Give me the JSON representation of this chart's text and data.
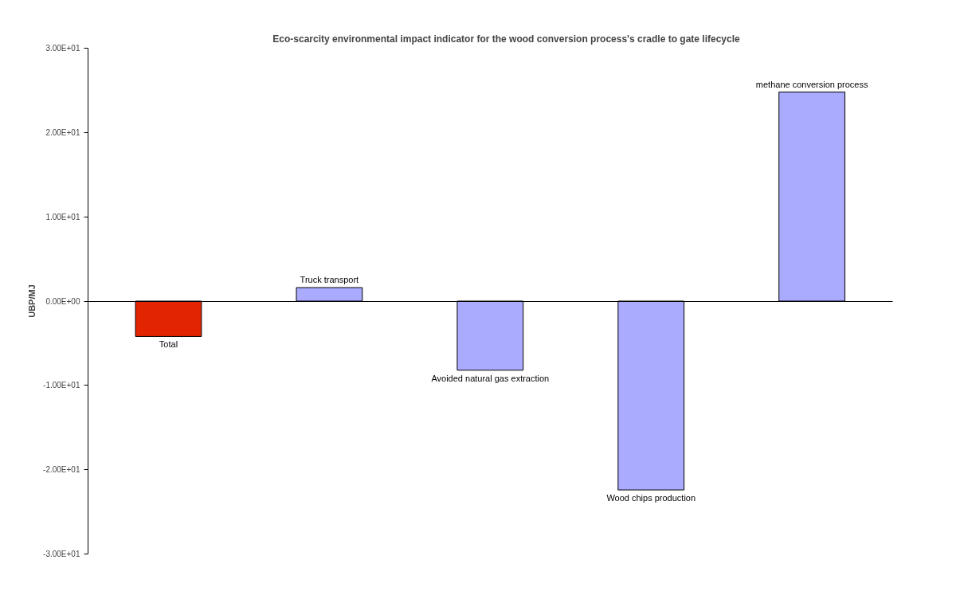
{
  "chart_data": {
    "type": "bar",
    "title": "Eco-scarcity environmental impact indicator for the wood conversion process's cradle to gate lifecycle",
    "ylabel": "UBP/MJ",
    "categories": [
      "Total",
      "Truck transport",
      "Avoided natural gas extraction",
      "Wood chips production",
      "methane conversion process"
    ],
    "values": [
      -4.2,
      1.6,
      -8.2,
      -22.4,
      24.8
    ],
    "colors": [
      "#e32400",
      "#aaaaff",
      "#aaaaff",
      "#aaaaff",
      "#aaaaff"
    ],
    "ylim": [
      -30,
      30
    ],
    "yticks": [
      {
        "value": -30,
        "label": "-3.00E+01"
      },
      {
        "value": -20,
        "label": "-2.00E+01"
      },
      {
        "value": -10,
        "label": "-1.00E+01"
      },
      {
        "value": 0,
        "label": "0.00E+00"
      },
      {
        "value": 10,
        "label": "1.00E+01"
      },
      {
        "value": 20,
        "label": "2.00E+01"
      },
      {
        "value": 30,
        "label": "3.00E+01"
      }
    ],
    "tick_labels": "y"
  }
}
